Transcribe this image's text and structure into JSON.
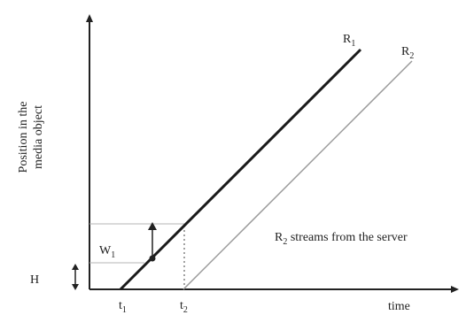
{
  "y_axis_label_line1": "Position in the",
  "y_axis_label_line2": "media object",
  "x_axis_label": "time",
  "series": [
    {
      "name": "R",
      "subscript": "1"
    },
    {
      "name": "R",
      "subscript": "2"
    }
  ],
  "ticks": [
    {
      "name": "t",
      "subscript": "1"
    },
    {
      "name": "t",
      "subscript": "2"
    }
  ],
  "window_label": {
    "name": "W",
    "subscript": "1"
  },
  "height_label": "H",
  "annotation": {
    "prefix": "R",
    "subscript": "2",
    "text": " streams from the server"
  },
  "colors": {
    "axis": "#222222",
    "r1_line": "#1a1a1a",
    "r2_line": "#9a9a9a",
    "guide": "#b0b0b0"
  }
}
